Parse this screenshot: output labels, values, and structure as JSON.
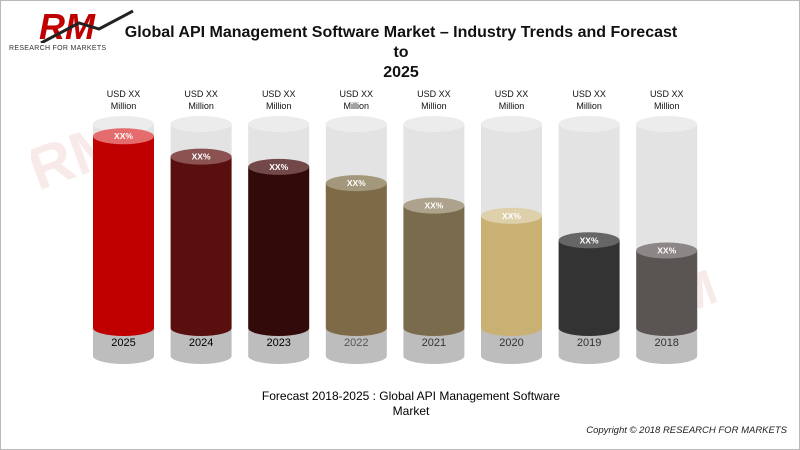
{
  "header": {
    "title_line1": "Global API Management Software Market – Industry Trends and Forecast to",
    "title_line2": "2025"
  },
  "logo": {
    "mark": "RM",
    "tagline": "RESEARCH FOR MARKETS"
  },
  "footer": {
    "subtitle_line1": "Forecast 2018-2025 : Global API Management Software",
    "subtitle_line2": "Market",
    "copyright": "Copyright © 2018 RESEARCH FOR MARKETS"
  },
  "chart_data": {
    "type": "bar",
    "title": "Global API Management Software Market – Industry Trends and Forecast to 2025",
    "categories": [
      "2025",
      "2024",
      "2023",
      "2022",
      "2021",
      "2020",
      "2019",
      "2018"
    ],
    "values": [
      0.94,
      0.84,
      0.79,
      0.71,
      0.6,
      0.55,
      0.43,
      0.38
    ],
    "value_labels": [
      "USD  XX\nMillion",
      "USD  XX\nMillion",
      "USD  XX\nMillion",
      "USD  XX\nMillion",
      "USD  XX\nMillion",
      "USD  XX\nMillion",
      "USD  XX\nMillion",
      "USD  XX\nMillion"
    ],
    "growth_labels": [
      "XX%",
      "XX%",
      "XX%",
      "XX%",
      "XX%",
      "XX%",
      "XX%",
      "XX%"
    ],
    "colors": [
      "#c00000",
      "#5a0f0f",
      "#330a0a",
      "#7f6a48",
      "#7b6b4d",
      "#c9b173",
      "#333333",
      "#5a5452"
    ],
    "top_colors": [
      "#e46c6c",
      "#8c5252",
      "#734848",
      "#a4987c",
      "#ada28b",
      "#ddd0ab",
      "#666666",
      "#8c8786"
    ],
    "year_label_colors": [
      "#000000",
      "#000000",
      "#000000",
      "#555555",
      "#333333",
      "#333333",
      "#333333",
      "#333333"
    ],
    "track_color": "#d9d9d9",
    "ylim": [
      0,
      1
    ]
  }
}
